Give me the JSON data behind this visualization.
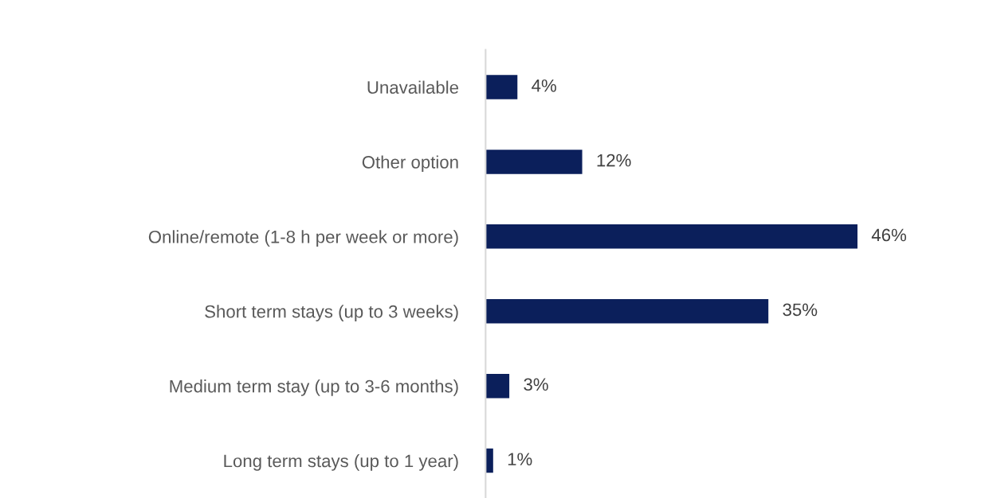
{
  "chart_data": {
    "type": "bar",
    "orientation": "horizontal",
    "categories": [
      "Unavailable",
      "Other option",
      "Online/remote (1-8 h per week or more)",
      "Short term stays (up to 3 weeks)",
      "Medium term stay (up to 3-6 months)",
      "Long term stays (up to 1 year)"
    ],
    "values": [
      4,
      12,
      46,
      35,
      3,
      1
    ],
    "value_labels": [
      "4%",
      "12%",
      "46%",
      "35%",
      "3%",
      "1%"
    ],
    "color": "#0b1f5b",
    "grid": false,
    "legend": false,
    "tick_labels": "y"
  }
}
